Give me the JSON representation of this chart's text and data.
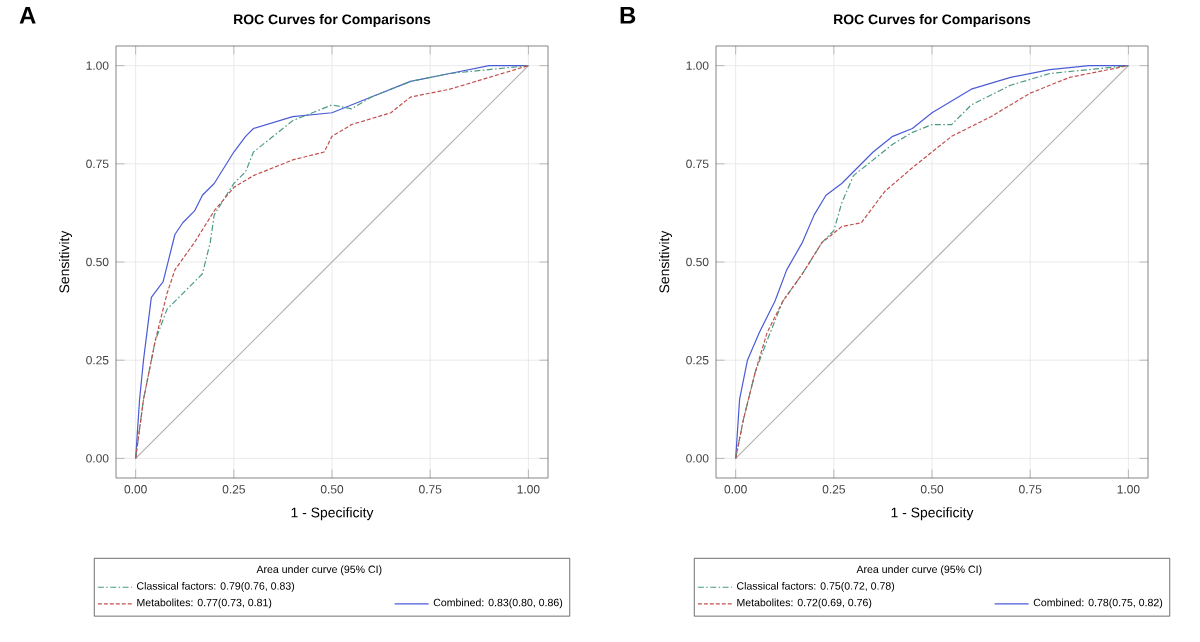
{
  "chart_data": [
    {
      "type": "line",
      "title": "ROC Curves for Comparisons",
      "xlabel": "1 - Specificity",
      "ylabel": "Sensitivity",
      "annotations": [
        "A"
      ],
      "legend_title": "Area under curve (95% CI)",
      "legend": "bottom",
      "grid": true,
      "marker": "none",
      "xlim": [
        -0.05,
        1.05
      ],
      "ylim": [
        -0.05,
        1.05
      ],
      "xticks": [
        {
          "value": 0,
          "label": "0.00"
        },
        {
          "value": 0.25,
          "label": "0.25"
        },
        {
          "value": 0.5,
          "label": "0.50"
        },
        {
          "value": 0.75,
          "label": "0.75"
        },
        {
          "value": 1,
          "label": "1.00"
        }
      ],
      "yticks": [
        {
          "value": 0,
          "label": "0.00"
        },
        {
          "value": 0.25,
          "label": "0.25"
        },
        {
          "value": 0.5,
          "label": "0.50"
        },
        {
          "value": 0.75,
          "label": "0.75"
        },
        {
          "value": 1,
          "label": "1.00"
        }
      ],
      "series": [
        {
          "name": "Classical factors: 0.79(0.76, 0.83)",
          "color": "#4a9a84",
          "line_style": "dashdot",
          "x": [
            0,
            0.02,
            0.05,
            0.08,
            0.12,
            0.17,
            0.19,
            0.2,
            0.25,
            0.28,
            0.3,
            0.35,
            0.4,
            0.5,
            0.55,
            0.6,
            0.7,
            0.8,
            0.9,
            1
          ],
          "values": [
            0,
            0.15,
            0.3,
            0.38,
            0.42,
            0.47,
            0.55,
            0.62,
            0.7,
            0.73,
            0.78,
            0.82,
            0.86,
            0.9,
            0.89,
            0.92,
            0.96,
            0.98,
            0.99,
            1
          ]
        },
        {
          "name": "Metabolites: 0.77(0.73, 0.81)",
          "color": "#c0504d",
          "line_style": "dashed",
          "x": [
            0,
            0.02,
            0.05,
            0.08,
            0.1,
            0.15,
            0.2,
            0.25,
            0.3,
            0.35,
            0.4,
            0.48,
            0.5,
            0.55,
            0.65,
            0.7,
            0.8,
            0.9,
            1
          ],
          "values": [
            0,
            0.15,
            0.3,
            0.42,
            0.48,
            0.55,
            0.63,
            0.69,
            0.72,
            0.74,
            0.76,
            0.78,
            0.82,
            0.85,
            0.88,
            0.92,
            0.94,
            0.97,
            1
          ]
        },
        {
          "name": "Combined: 0.83(0.80, 0.86)",
          "color": "#4b5bd6",
          "line_style": "solid",
          "x": [
            0,
            0.01,
            0.02,
            0.04,
            0.07,
            0.1,
            0.12,
            0.15,
            0.17,
            0.2,
            0.25,
            0.28,
            0.3,
            0.4,
            0.5,
            0.6,
            0.7,
            0.8,
            0.9,
            1
          ],
          "values": [
            0,
            0.15,
            0.25,
            0.41,
            0.45,
            0.57,
            0.6,
            0.63,
            0.67,
            0.7,
            0.78,
            0.82,
            0.84,
            0.87,
            0.88,
            0.92,
            0.96,
            0.98,
            1,
            1
          ]
        },
        {
          "color": "#b0b0b0",
          "line_style": "solid",
          "x": [
            0,
            1
          ],
          "values": [
            0,
            1
          ]
        }
      ]
    },
    {
      "type": "line",
      "title": "ROC Curves for Comparisons",
      "xlabel": "1 - Specificity",
      "ylabel": "Sensitivity",
      "annotations": [
        "B"
      ],
      "legend_title": "Area under curve (95% CI)",
      "legend": "bottom",
      "grid": true,
      "marker": "none",
      "xlim": [
        -0.05,
        1.05
      ],
      "ylim": [
        -0.05,
        1.05
      ],
      "xticks": [
        {
          "value": 0,
          "label": "0.00"
        },
        {
          "value": 0.25,
          "label": "0.25"
        },
        {
          "value": 0.5,
          "label": "0.50"
        },
        {
          "value": 0.75,
          "label": "0.75"
        },
        {
          "value": 1,
          "label": "1.00"
        }
      ],
      "yticks": [
        {
          "value": 0,
          "label": "0.00"
        },
        {
          "value": 0.25,
          "label": "0.25"
        },
        {
          "value": 0.5,
          "label": "0.50"
        },
        {
          "value": 0.75,
          "label": "0.75"
        },
        {
          "value": 1,
          "label": "1.00"
        }
      ],
      "series": [
        {
          "name": "Classical factors: 0.75(0.72, 0.78)",
          "color": "#4a9a84",
          "line_style": "dashdot",
          "x": [
            0,
            0.02,
            0.05,
            0.08,
            0.12,
            0.17,
            0.22,
            0.25,
            0.27,
            0.3,
            0.35,
            0.4,
            0.45,
            0.5,
            0.55,
            0.6,
            0.7,
            0.8,
            0.9,
            1
          ],
          "values": [
            0,
            0.1,
            0.22,
            0.3,
            0.4,
            0.47,
            0.55,
            0.58,
            0.65,
            0.72,
            0.76,
            0.8,
            0.83,
            0.85,
            0.85,
            0.9,
            0.95,
            0.98,
            0.99,
            1
          ]
        },
        {
          "name": "Metabolites: 0.72(0.69, 0.76)",
          "color": "#c0504d",
          "line_style": "dashed",
          "x": [
            0,
            0.02,
            0.05,
            0.08,
            0.12,
            0.17,
            0.22,
            0.27,
            0.32,
            0.38,
            0.45,
            0.5,
            0.55,
            0.65,
            0.75,
            0.85,
            0.95,
            1
          ],
          "values": [
            0,
            0.1,
            0.22,
            0.32,
            0.4,
            0.47,
            0.55,
            0.59,
            0.6,
            0.68,
            0.74,
            0.78,
            0.82,
            0.87,
            0.93,
            0.97,
            0.99,
            1
          ]
        },
        {
          "name": "Combined: 0.78(0.75, 0.82)",
          "color": "#4b5bd6",
          "line_style": "solid",
          "x": [
            0,
            0.01,
            0.03,
            0.06,
            0.1,
            0.13,
            0.17,
            0.2,
            0.23,
            0.27,
            0.3,
            0.35,
            0.4,
            0.45,
            0.5,
            0.55,
            0.6,
            0.7,
            0.8,
            0.9,
            1
          ],
          "values": [
            0,
            0.15,
            0.25,
            0.32,
            0.4,
            0.48,
            0.55,
            0.62,
            0.67,
            0.7,
            0.73,
            0.78,
            0.82,
            0.84,
            0.88,
            0.91,
            0.94,
            0.97,
            0.99,
            1,
            1
          ]
        },
        {
          "color": "#b0b0b0",
          "line_style": "solid",
          "x": [
            0,
            1
          ],
          "values": [
            0,
            1
          ]
        }
      ]
    }
  ]
}
